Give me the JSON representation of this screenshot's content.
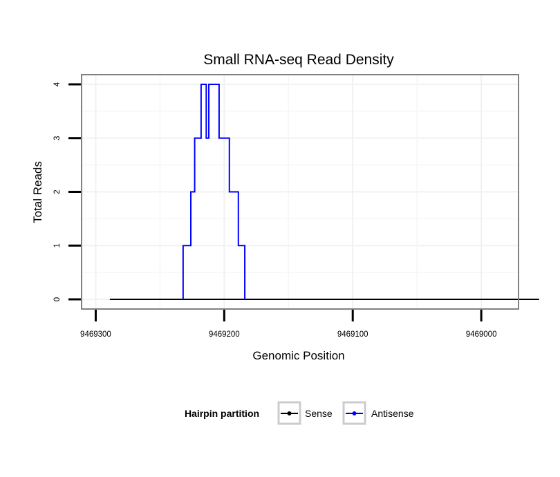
{
  "chart_data": {
    "type": "line",
    "title": "Small RNA-seq Read Density",
    "xlabel": "Genomic Position",
    "ylabel": "Total Reads",
    "x_reversed": true,
    "xlim": [
      9469311,
      9468971
    ],
    "ylim": [
      -0.18,
      4.18
    ],
    "x_ticks": [
      9469300,
      9469200,
      9469100,
      9469000
    ],
    "x_tick_labels": [
      "9469300",
      "9469200",
      "9469100",
      "9469000"
    ],
    "y_ticks": [
      0,
      1,
      2,
      3,
      4
    ],
    "y_tick_labels": [
      "0",
      "1",
      "2",
      "3",
      "4"
    ],
    "grid": true,
    "legend": {
      "title": "Hairpin partition",
      "position": "bottom",
      "entries": [
        "Sense",
        "Antisense"
      ]
    },
    "series": [
      {
        "name": "Sense",
        "color": "#000000",
        "step": true,
        "points": [
          [
            9469289,
            0
          ],
          [
            9468955,
            0
          ]
        ]
      },
      {
        "name": "Antisense",
        "color": "#0000ff",
        "step": true,
        "points": [
          [
            9469232,
            0
          ],
          [
            9469232,
            1
          ],
          [
            9469226,
            1
          ],
          [
            9469226,
            2
          ],
          [
            9469223,
            2
          ],
          [
            9469223,
            3
          ],
          [
            9469218,
            3
          ],
          [
            9469218,
            4
          ],
          [
            9469214,
            4
          ],
          [
            9469214,
            3
          ],
          [
            9469212,
            3
          ],
          [
            9469212,
            4
          ],
          [
            9469204,
            4
          ],
          [
            9469204,
            3
          ],
          [
            9469196,
            3
          ],
          [
            9469196,
            2
          ],
          [
            9469189,
            2
          ],
          [
            9469189,
            1
          ],
          [
            9469184,
            1
          ],
          [
            9469184,
            0
          ]
        ]
      }
    ]
  }
}
